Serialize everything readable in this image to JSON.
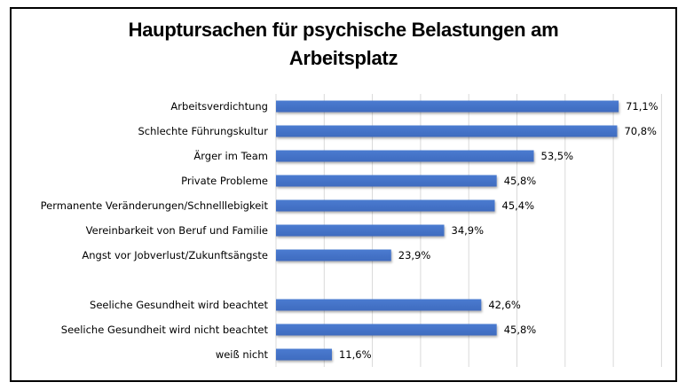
{
  "chart_data": {
    "type": "bar",
    "orientation": "horizontal",
    "title": "Hauptursachen für psychische Belastungen am Arbeitsplatz",
    "title_lines": [
      "Hauptursachen für psychische Belastungen am",
      "Arbeitsplatz"
    ],
    "xlabel": "",
    "ylabel": "",
    "xlim": [
      0,
      80
    ],
    "grid": true,
    "grid_step": 10,
    "legend": "none",
    "bar_color": "#4472C4",
    "categories": [
      "Arbeitsverdichtung",
      "Schlechte Führungskultur",
      "Ärger im Team",
      "Private Probleme",
      "Permanente Veränderungen/Schnelllebigkeit",
      "Vereinbarkeit von Beruf und Familie",
      "Angst vor Jobverlust/Zukunftsängste",
      "",
      "Seeliche Gesundheit wird beachtet",
      "Seeliche Gesundheit wird nicht beachtet",
      "weiß nicht"
    ],
    "values": [
      71.1,
      70.8,
      53.5,
      45.8,
      45.4,
      34.9,
      23.9,
      null,
      42.6,
      45.8,
      11.6
    ],
    "value_labels": [
      "71,1%",
      "70,8%",
      "53,5%",
      "45,8%",
      "45,4%",
      "34,9%",
      "23,9%",
      "",
      "42,6%",
      "45,8%",
      "11,6%"
    ]
  }
}
